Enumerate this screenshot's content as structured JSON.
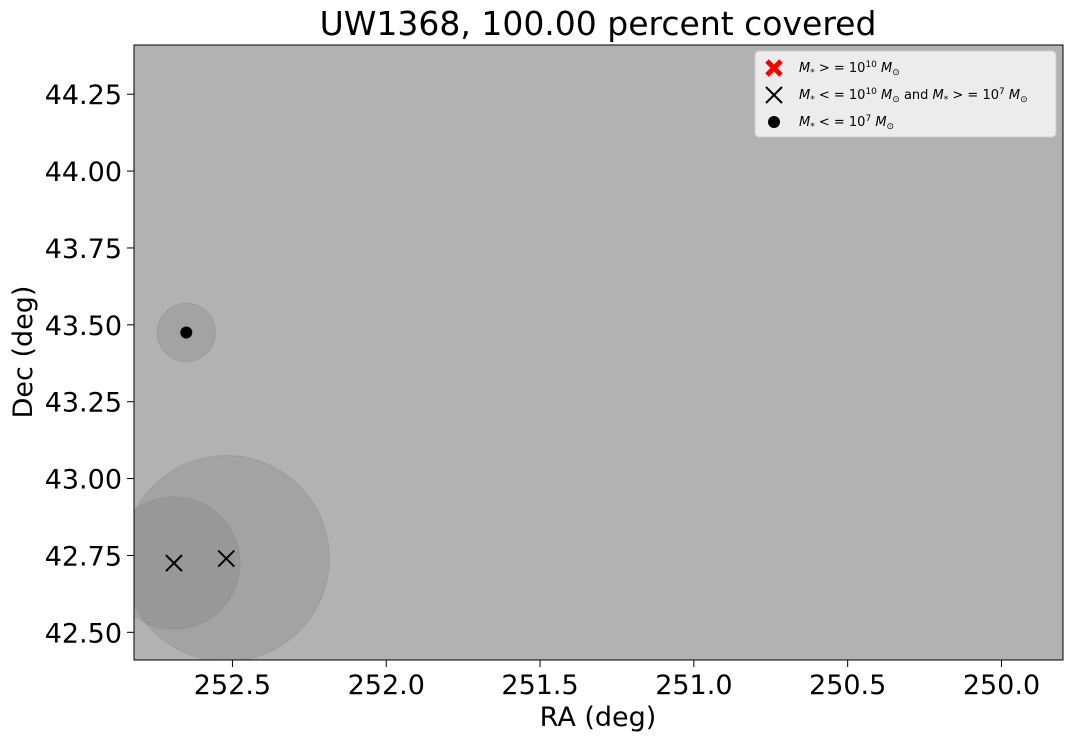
{
  "chart_data": {
    "type": "scatter",
    "title": "UW1368, 100.00 percent covered",
    "xlabel": "RA (deg)",
    "ylabel": "Dec (deg)",
    "xlim": [
      252.82,
      249.8
    ],
    "ylim": [
      42.41,
      44.41
    ],
    "x_inverted": true,
    "xticks": [
      252.5,
      252.0,
      251.5,
      251.0,
      250.5,
      250.0
    ],
    "xtick_labels": [
      "252.5",
      "252.0",
      "251.5",
      "251.0",
      "250.5",
      "250.0"
    ],
    "yticks": [
      42.5,
      42.75,
      43.0,
      43.25,
      43.5,
      43.75,
      44.0,
      44.25
    ],
    "ytick_labels": [
      "42.50",
      "42.75",
      "43.00",
      "43.25",
      "43.50",
      "43.75",
      "44.00",
      "44.25"
    ],
    "background_color": "#b2b2b2",
    "coverage_color": "#808080",
    "grid": false,
    "legend_position": "upper right",
    "legend": [
      {
        "marker": "red-x",
        "color": "#ff0000",
        "label_main": "M",
        "label_sub": "*",
        "label_rest": " > = 10",
        "label_sup": "10",
        "label_tail": "M",
        "label_tail_sub": "⊙"
      },
      {
        "marker": "black-x",
        "color": "#000000",
        "label_main": "M",
        "label_sub": "*",
        "label_rest": " < = 10",
        "label_sup": "10",
        "label_tail": "M",
        "label_tail_sub": "⊙",
        "label_and": "  and  ",
        "label_main2": "M",
        "label_sub2": "*",
        "label_rest2": " > = 10",
        "label_sup2": "7",
        "label_tail2": "M",
        "label_tail_sub2": "⊙"
      },
      {
        "marker": "black-dot",
        "color": "#000000",
        "label_main": "M",
        "label_sub": "*",
        "label_rest": " < = 10",
        "label_sup": "7",
        "label_tail": "M",
        "label_tail_sub": "⊙"
      }
    ],
    "coverage_circles": [
      {
        "ra": 252.52,
        "dec": 42.74,
        "radius_deg": 0.335
      },
      {
        "ra": 252.69,
        "dec": 42.725,
        "radius_deg": 0.215
      },
      {
        "ra": 252.65,
        "dec": 43.475,
        "radius_deg": 0.095
      }
    ],
    "points": [
      {
        "ra": 252.52,
        "dec": 42.74,
        "class": "mid-mass",
        "marker": "x"
      },
      {
        "ra": 252.69,
        "dec": 42.725,
        "class": "mid-mass",
        "marker": "x"
      },
      {
        "ra": 252.65,
        "dec": 43.475,
        "class": "low-mass",
        "marker": "dot"
      }
    ]
  }
}
